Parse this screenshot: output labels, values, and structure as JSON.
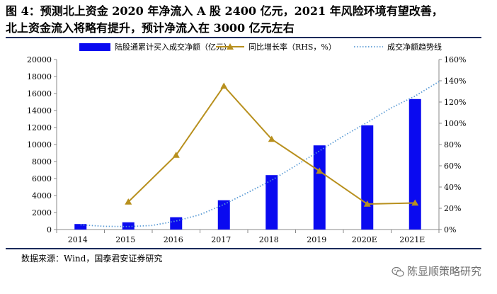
{
  "title_line1": "图 4：预测北上资金 2020 年净流入 A 股 2400 亿元，2021 年风险环境有望改善，",
  "title_line2": "北上资金流入将略有提升，预计净流入在 3000 亿元左右",
  "source": "数据来源：Wind，国泰君安证券研究",
  "watermark": "陈显顺策略研究",
  "colors": {
    "bar": "#0a0af0",
    "line": "#b8901e",
    "trend": "#5b9bd5",
    "rule": "#1a2a5a"
  },
  "chart_data": {
    "type": "bar",
    "categories": [
      "2014",
      "2015",
      "2016",
      "2017",
      "2018",
      "2019",
      "2020E",
      "2021E"
    ],
    "series": [
      {
        "name": "陆股通累计买入成交净额（亿元）",
        "type": "bar",
        "axis": "left",
        "values": [
          650,
          850,
          1450,
          3450,
          6400,
          9900,
          12250,
          15350
        ]
      },
      {
        "name": "同比增长率（RHS，%）",
        "type": "line",
        "axis": "right",
        "marker": "triangle",
        "values": [
          null,
          26,
          70,
          135,
          85,
          55,
          24,
          25
        ]
      },
      {
        "name": "成交净额趋势线",
        "type": "line",
        "style": "dotted",
        "axis": "left",
        "x": [
          2014,
          2014.5,
          2015,
          2015.5,
          2016,
          2016.5,
          2017,
          2017.5,
          2018,
          2018.5,
          2019,
          2019.5,
          2020,
          2020.5,
          2021,
          2021.5
        ],
        "values": [
          550,
          380,
          350,
          480,
          1000,
          1750,
          2950,
          4350,
          5800,
          7500,
          9250,
          11000,
          12600,
          14300,
          15700,
          17400
        ]
      }
    ],
    "ylim": [
      0,
      20000
    ],
    "yticks": [
      0,
      2000,
      4000,
      6000,
      8000,
      10000,
      12000,
      14000,
      16000,
      18000,
      20000
    ],
    "y2lim": [
      0,
      160
    ],
    "y2ticks": [
      "0%",
      "20%",
      "40%",
      "60%",
      "80%",
      "100%",
      "120%",
      "140%",
      "160%"
    ],
    "legend_position": "top",
    "grid": false
  }
}
